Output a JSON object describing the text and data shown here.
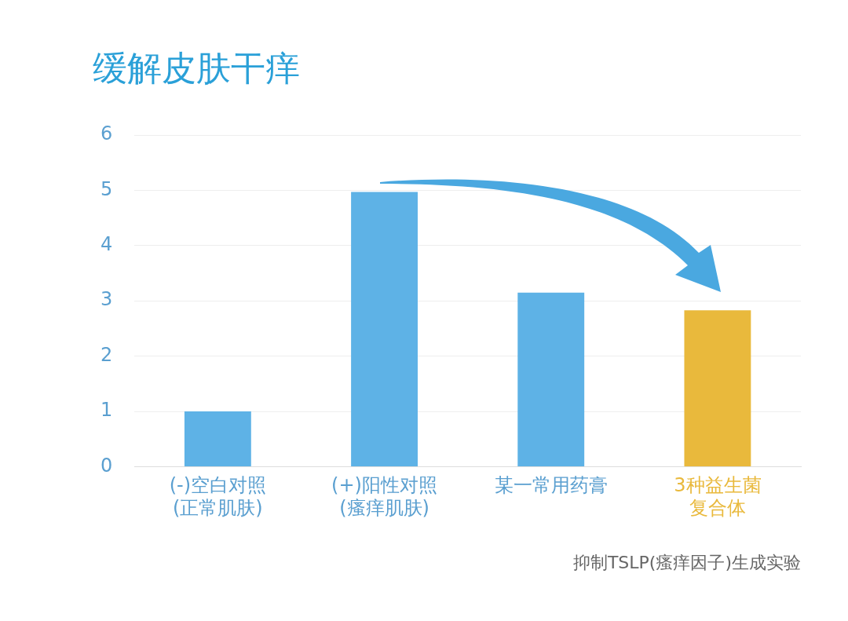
{
  "chart_data": {
    "type": "bar",
    "title": "缓解皮肤干痒",
    "categories": [
      "(-)空白对照(正常肌肤)",
      "(+)阳性对照(瘙痒肌肤)",
      "某一常用药膏",
      "3种益生菌复合体"
    ],
    "values": [
      1.0,
      4.97,
      3.15,
      2.83
    ],
    "colors": [
      "#5eb2e6",
      "#5eb2e6",
      "#5eb2e6",
      "#e9b93c"
    ],
    "ylim": [
      0,
      6
    ],
    "yticks": [
      0,
      1,
      2,
      3,
      4,
      5,
      6
    ],
    "grid": "y",
    "legend": false,
    "annotations": [
      "抑制TSLP(瘙痒因子)生成实验"
    ]
  }
}
